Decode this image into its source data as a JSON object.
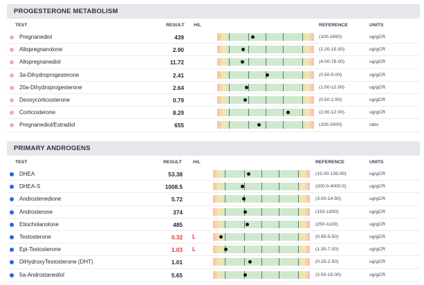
{
  "columns": {
    "test": "TEST",
    "result": "RESULT",
    "hl": "H/L",
    "reference": "REFERENCE",
    "units": "UNITS"
  },
  "colors": {
    "progesterone_dot": "#f2a7c3",
    "androgen_dot": "#2563eb",
    "low_flag": "#e0312f"
  },
  "sections": [
    {
      "title": "PROGESTERONE METABOLISM",
      "rows": [
        {
          "name": "Pregnanediol",
          "result": "439",
          "hl": "",
          "reference": "(100-1650)",
          "units": "ug/gCR",
          "marker_fraction": 0.37
        },
        {
          "name": "Allopregnanolone",
          "result": "2.90",
          "hl": "",
          "reference": "(1.20-15.50)",
          "units": "ug/gCR",
          "marker_fraction": 0.27
        },
        {
          "name": "Allopregnanediol",
          "result": "11.72",
          "hl": "",
          "reference": "(4.00-78.00)",
          "units": "ug/gCR",
          "marker_fraction": 0.26
        },
        {
          "name": "3a-Dihydroprogesterone",
          "result": "2.41",
          "hl": "",
          "reference": "(0.50-5.00)",
          "units": "ug/gCR",
          "marker_fraction": 0.52
        },
        {
          "name": "20a-Dihydroprogesterone",
          "result": "2.64",
          "hl": "",
          "reference": "(1.00-12.00)",
          "units": "ug/gCR",
          "marker_fraction": 0.3
        },
        {
          "name": "Deoxycorticosterone",
          "result": "0.79",
          "hl": "",
          "reference": "(0.50-2.50)",
          "units": "ug/gCR",
          "marker_fraction": 0.29
        },
        {
          "name": "Corticosterone",
          "result": "8.29",
          "hl": "",
          "reference": "(2.00-12.00)",
          "units": "ug/gCR",
          "marker_fraction": 0.73
        },
        {
          "name": "Pregnanediol/Estradiol",
          "result": "655",
          "hl": "",
          "reference": "(100-2000)",
          "units": "ratio",
          "marker_fraction": 0.43
        }
      ]
    },
    {
      "title": "PRIMARY ANDROGENS",
      "rows": [
        {
          "name": "DHEA",
          "result": "53.38",
          "hl": "",
          "reference": "(15.00-135.00)",
          "units": "ug/gCR",
          "marker_fraction": 0.37
        },
        {
          "name": "DHEA-S",
          "result": "1008.5",
          "hl": "",
          "reference": "(200.0-4000.0)",
          "units": "ug/gCR",
          "marker_fraction": 0.3
        },
        {
          "name": "Androstenedione",
          "result": "5.72",
          "hl": "",
          "reference": "(3.00-14.50)",
          "units": "ug/gCR",
          "marker_fraction": 0.32
        },
        {
          "name": "Androsterone",
          "result": "374",
          "hl": "",
          "reference": "(150-1000)",
          "units": "ug/gCR",
          "marker_fraction": 0.33
        },
        {
          "name": "Etiocholanolone",
          "result": "485",
          "hl": "",
          "reference": "(250-1100)",
          "units": "ug/gCR",
          "marker_fraction": 0.35
        },
        {
          "name": "Testosterone",
          "result": "0.32",
          "hl": "L",
          "reference": "(0.95-5.50)",
          "units": "ug/gCR",
          "marker_fraction": 0.08
        },
        {
          "name": "Epi-Testosterone",
          "result": "1.03",
          "hl": "L",
          "reference": "(1.30-7.00)",
          "units": "ug/gCR",
          "marker_fraction": 0.13
        },
        {
          "name": "DiHydroxyTestosterone (DHT)",
          "result": "1.01",
          "hl": "",
          "reference": "(0.25-2.50)",
          "units": "ug/gCR",
          "marker_fraction": 0.38
        },
        {
          "name": "5a-Androstanediol",
          "result": "5.65",
          "hl": "",
          "reference": "(2.50-15.00)",
          "units": "ug/gCR",
          "marker_fraction": 0.33
        }
      ]
    }
  ]
}
